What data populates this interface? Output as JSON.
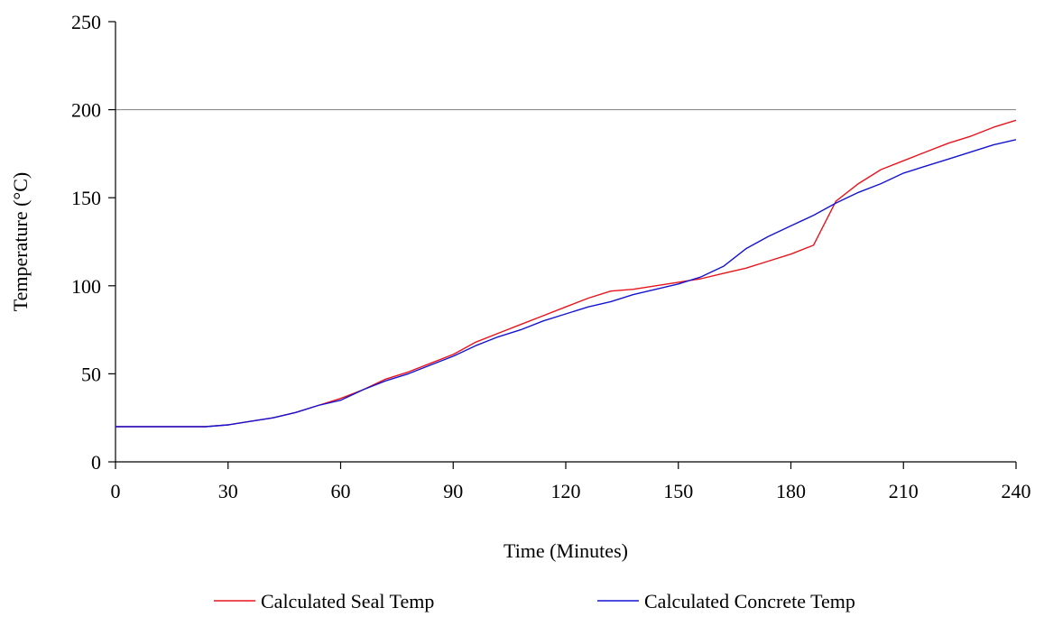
{
  "chart_data": {
    "type": "line",
    "title": "",
    "xlabel": "Time (Minutes)",
    "ylabel": "Temperature (°C)",
    "xlim": [
      0,
      240
    ],
    "ylim": [
      0,
      250
    ],
    "xticks": [
      0,
      30,
      60,
      90,
      120,
      150,
      180,
      210,
      240
    ],
    "yticks": [
      0,
      50,
      100,
      150,
      200,
      250
    ],
    "reference_line": {
      "y": 200,
      "color": "#808080"
    },
    "grid": false,
    "legend": "bottom",
    "series": [
      {
        "name": "Calculated Seal Temp",
        "color": "#e8141c",
        "x": [
          0,
          6,
          12,
          18,
          24,
          30,
          36,
          42,
          48,
          54,
          60,
          66,
          72,
          78,
          84,
          90,
          96,
          102,
          108,
          114,
          120,
          126,
          132,
          138,
          144,
          150,
          156,
          162,
          168,
          174,
          180,
          186,
          192,
          198,
          204,
          210,
          216,
          222,
          228,
          234,
          240
        ],
        "y": [
          20,
          20,
          20,
          20,
          20,
          21,
          23,
          25,
          28,
          32,
          36,
          41,
          47,
          51,
          56,
          61,
          68,
          73,
          78,
          83,
          88,
          93,
          97,
          98,
          100,
          102,
          104,
          107,
          110,
          114,
          118,
          123,
          148,
          158,
          166,
          171,
          176,
          181,
          185,
          190,
          194
        ]
      },
      {
        "name": "Calculated Concrete Temp",
        "color": "#1414d2",
        "x": [
          0,
          6,
          12,
          18,
          24,
          30,
          36,
          42,
          48,
          54,
          60,
          66,
          72,
          78,
          84,
          90,
          96,
          102,
          108,
          114,
          120,
          126,
          132,
          138,
          144,
          150,
          156,
          162,
          168,
          174,
          180,
          186,
          192,
          198,
          204,
          210,
          216,
          222,
          228,
          234,
          240
        ],
        "y": [
          20,
          20,
          20,
          20,
          20,
          21,
          23,
          25,
          28,
          32,
          35,
          41,
          46,
          50,
          55,
          60,
          66,
          71,
          75,
          80,
          84,
          88,
          91,
          95,
          98,
          101,
          105,
          111,
          121,
          128,
          134,
          140,
          147,
          153,
          158,
          164,
          168,
          172,
          176,
          180,
          183
        ]
      }
    ]
  }
}
